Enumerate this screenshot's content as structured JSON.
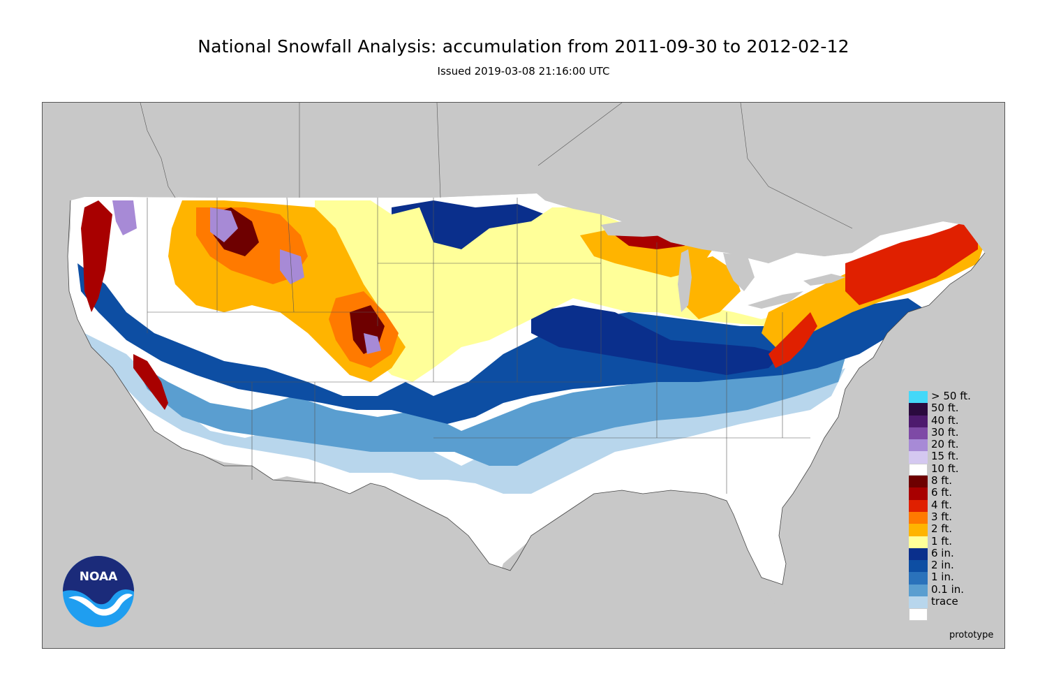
{
  "header": {
    "title": "National Snowfall Analysis: accumulation from 2011-09-30 to 2012-02-12",
    "issued": "Issued 2019-03-08 21:16:00 UTC"
  },
  "logo": {
    "text": "NOAA",
    "icon": "noaa-logo-icon"
  },
  "watermark": "prototype",
  "legend": [
    {
      "label": "> 50 ft.",
      "color": "#44d8f8"
    },
    {
      "label": "50 ft.",
      "color": "#2a0a3e"
    },
    {
      "label": "40 ft.",
      "color": "#4d1a6e"
    },
    {
      "label": "30 ft.",
      "color": "#7e4aa6"
    },
    {
      "label": "20 ft.",
      "color": "#a78ad6"
    },
    {
      "label": "15 ft.",
      "color": "#d4c8f0"
    },
    {
      "label": "10 ft.",
      "color": "#ffffff"
    },
    {
      "label": "8 ft.",
      "color": "#6e0000"
    },
    {
      "label": "6 ft.",
      "color": "#a80000"
    },
    {
      "label": "4 ft.",
      "color": "#e02000"
    },
    {
      "label": "3 ft.",
      "color": "#ff7a00"
    },
    {
      "label": "2 ft.",
      "color": "#ffb400"
    },
    {
      "label": "1 ft.",
      "color": "#ffff99"
    },
    {
      "label": "6 in.",
      "color": "#0a2f8c"
    },
    {
      "label": "2 in.",
      "color": "#0d4ea3"
    },
    {
      "label": "1 in.",
      "color": "#2a72bb"
    },
    {
      "label": "0.1 in.",
      "color": "#5a9ed0"
    },
    {
      "label": "trace",
      "color": "#b8d6ec"
    },
    {
      "label": "",
      "color": "#ffffff"
    }
  ],
  "map": {
    "land_color": "#c8c8c8",
    "ocean_color": "#c8c8c8",
    "no_snow_color": "#ffffff"
  }
}
